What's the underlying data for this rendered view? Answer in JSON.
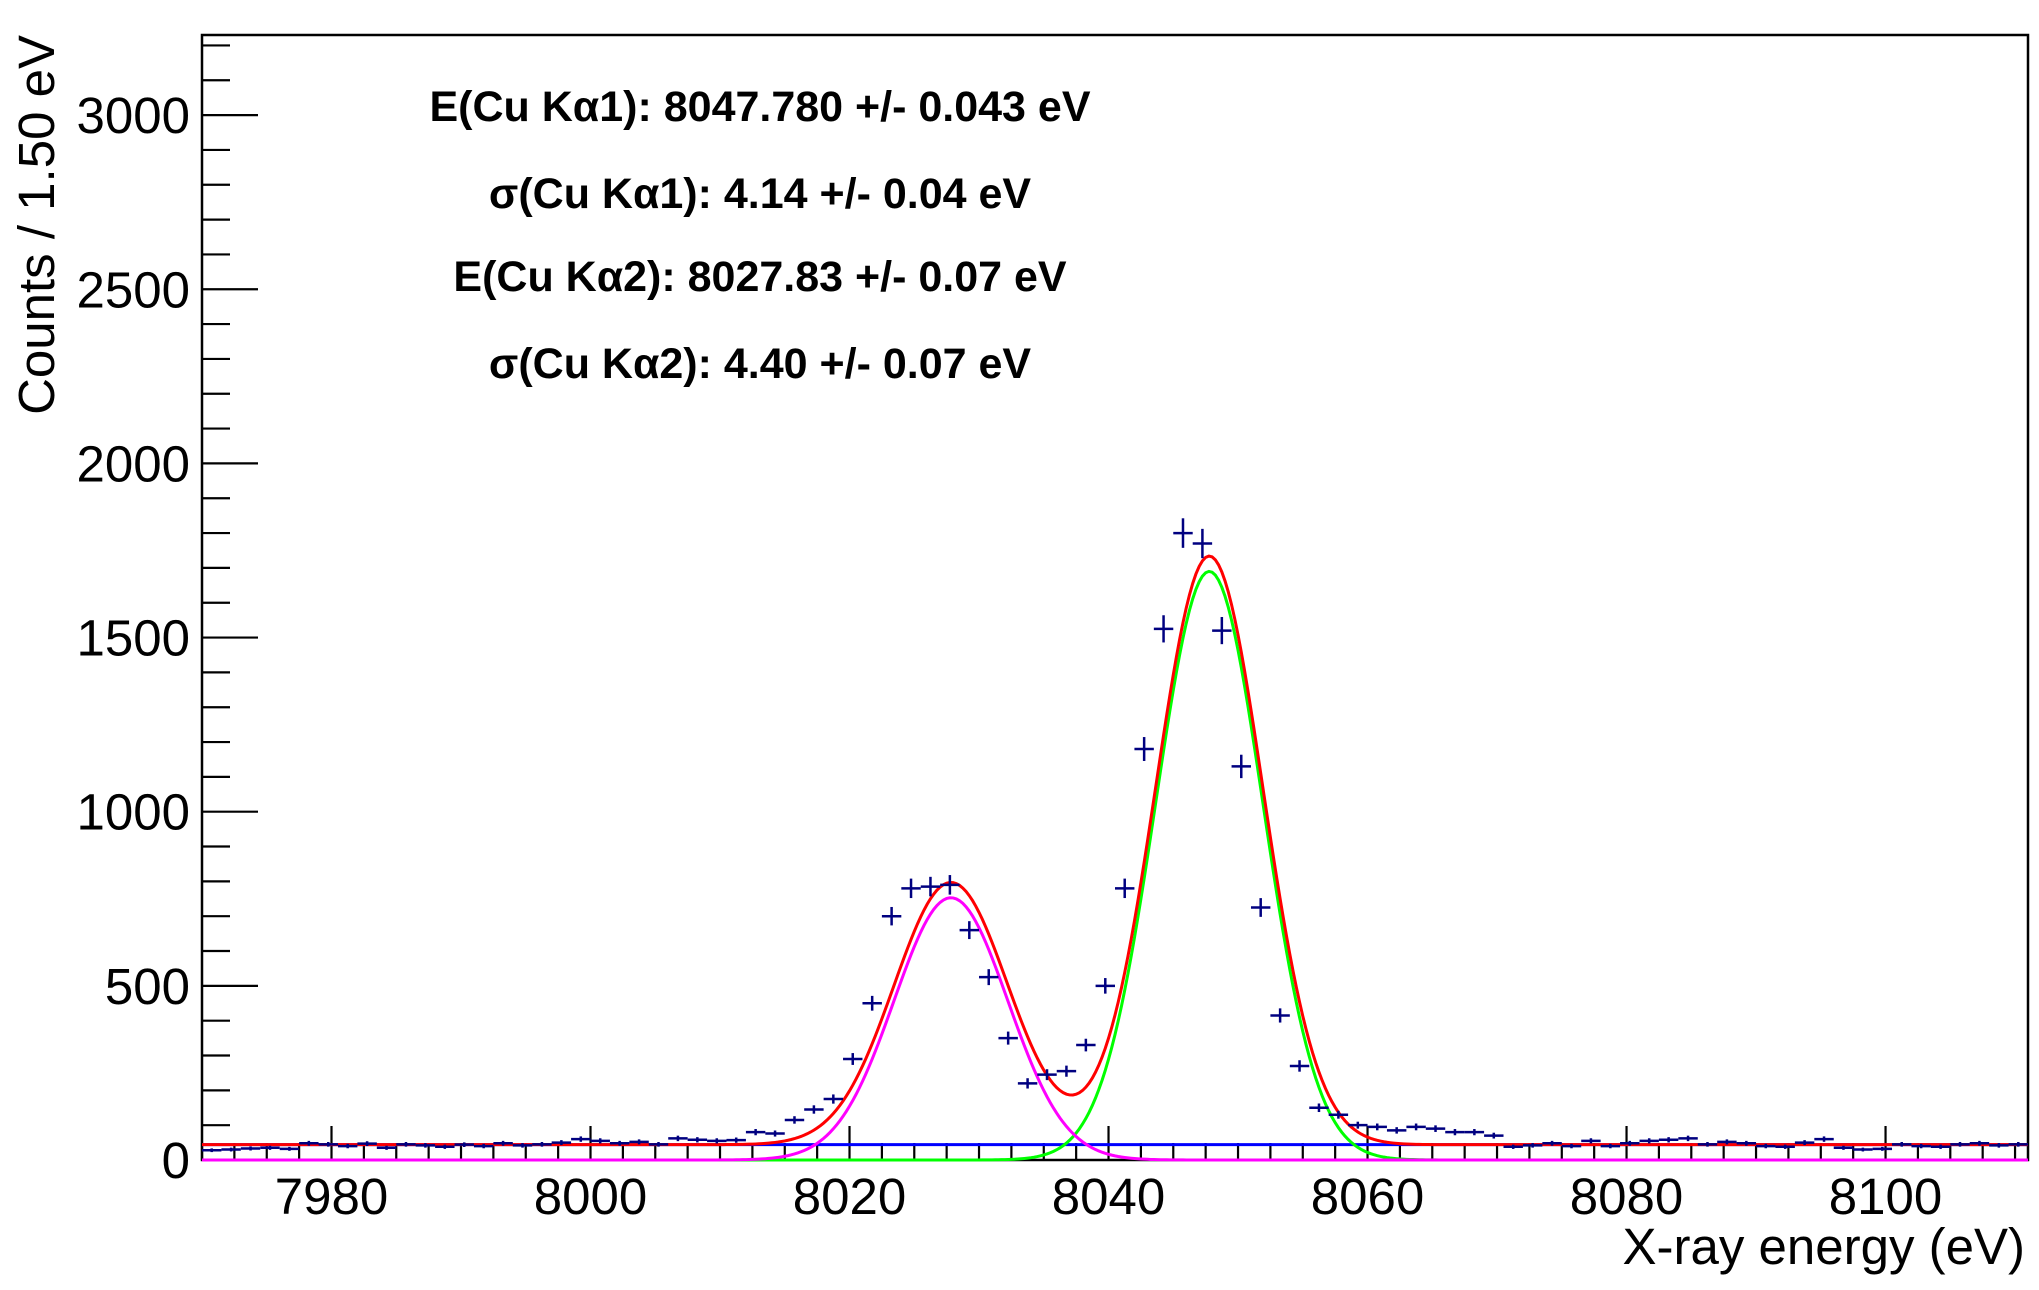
{
  "chart_data": {
    "type": "scatter",
    "xlabel": "X-ray energy (eV)",
    "ylabel": "Counts / 1.50 eV",
    "xlim": [
      7970,
      8111
    ],
    "ylim": [
      0,
      3230
    ],
    "x_ticks": [
      7980,
      8000,
      8020,
      8040,
      8060,
      8080,
      8100
    ],
    "x_tick_labels": [
      "7980",
      "8000",
      "8020",
      "8040",
      "8060",
      "8080",
      "8100"
    ],
    "y_ticks": [
      0,
      500,
      1000,
      1500,
      2000,
      2500,
      3000
    ],
    "y_tick_labels": [
      "0",
      "500",
      "1000",
      "1500",
      "2000",
      "2500",
      "3000"
    ],
    "annotations": [
      "E(Cu Kα1): 8047.780 +/- 0.043 eV",
      "σ(Cu Kα1): 4.14 +/- 0.04 eV",
      "E(Cu Kα2): 8027.83 +/- 0.07 eV",
      "σ(Cu Kα2): 4.40 +/- 0.07 eV"
    ],
    "bin_width": 1.5,
    "points": {
      "x": [
        7970.75,
        7972.25,
        7973.75,
        7975.25,
        7976.75,
        7978.25,
        7979.75,
        7981.25,
        7982.75,
        7984.25,
        7985.75,
        7987.25,
        7988.75,
        7990.25,
        7991.75,
        7993.25,
        7994.75,
        7996.25,
        7997.75,
        7999.25,
        8000.75,
        8002.25,
        8003.75,
        8005.25,
        8006.75,
        8008.25,
        8009.75,
        8011.25,
        8012.75,
        8014.25,
        8015.75,
        8017.25,
        8018.75,
        8020.25,
        8021.75,
        8023.25,
        8024.75,
        8026.25,
        8027.75,
        8029.25,
        8030.75,
        8032.25,
        8033.75,
        8035.25,
        8036.75,
        8038.25,
        8039.75,
        8041.25,
        8042.75,
        8044.25,
        8045.75,
        8047.25,
        8048.75,
        8050.25,
        8051.75,
        8053.25,
        8054.75,
        8056.25,
        8057.75,
        8059.25,
        8060.75,
        8062.25,
        8063.75,
        8065.25,
        8066.75,
        8068.25,
        8069.75,
        8071.25,
        8072.75,
        8074.25,
        8075.75,
        8077.25,
        8078.75,
        8080.25,
        8081.75,
        8083.25,
        8084.75,
        8086.25,
        8087.75,
        8089.25,
        8090.75,
        8092.25,
        8093.75,
        8095.25,
        8096.75,
        8098.25,
        8099.75,
        8101.25,
        8102.75,
        8104.25,
        8105.75,
        8107.25,
        8108.75,
        8110.25
      ],
      "y": [
        28,
        30,
        33,
        35,
        32,
        48,
        45,
        40,
        47,
        35,
        45,
        42,
        38,
        44,
        40,
        48,
        42,
        45,
        50,
        60,
        55,
        48,
        52,
        45,
        62,
        58,
        55,
        57,
        80,
        76,
        115,
        145,
        175,
        290,
        450,
        700,
        780,
        785,
        790,
        660,
        525,
        350,
        220,
        245,
        255,
        330,
        500,
        780,
        1180,
        1525,
        1800,
        1770,
        1520,
        1130,
        725,
        415,
        270,
        150,
        130,
        100,
        95,
        85,
        95,
        90,
        80,
        80,
        70,
        38,
        42,
        48,
        40,
        55,
        40,
        48,
        55,
        58,
        62,
        45,
        52,
        48,
        40,
        38,
        50,
        60,
        35,
        30,
        32,
        45,
        40,
        38,
        45,
        48,
        42,
        45
      ]
    },
    "series": [
      {
        "name": "",
        "type": "gaussian",
        "amplitude": 1690,
        "mean": 8047.78,
        "sigma": 4.14,
        "color": "#00ff00"
      },
      {
        "name": "",
        "type": "gaussian",
        "amplitude": 753,
        "mean": 8027.83,
        "sigma": 4.4,
        "color": "#ff00ff"
      },
      {
        "name": "",
        "type": "constant",
        "value": 44,
        "color": "#0000ff"
      },
      {
        "name": "",
        "type": "sum",
        "color": "#ff0000"
      }
    ],
    "marker_color": "#000080",
    "grid": false,
    "legend": "none"
  }
}
